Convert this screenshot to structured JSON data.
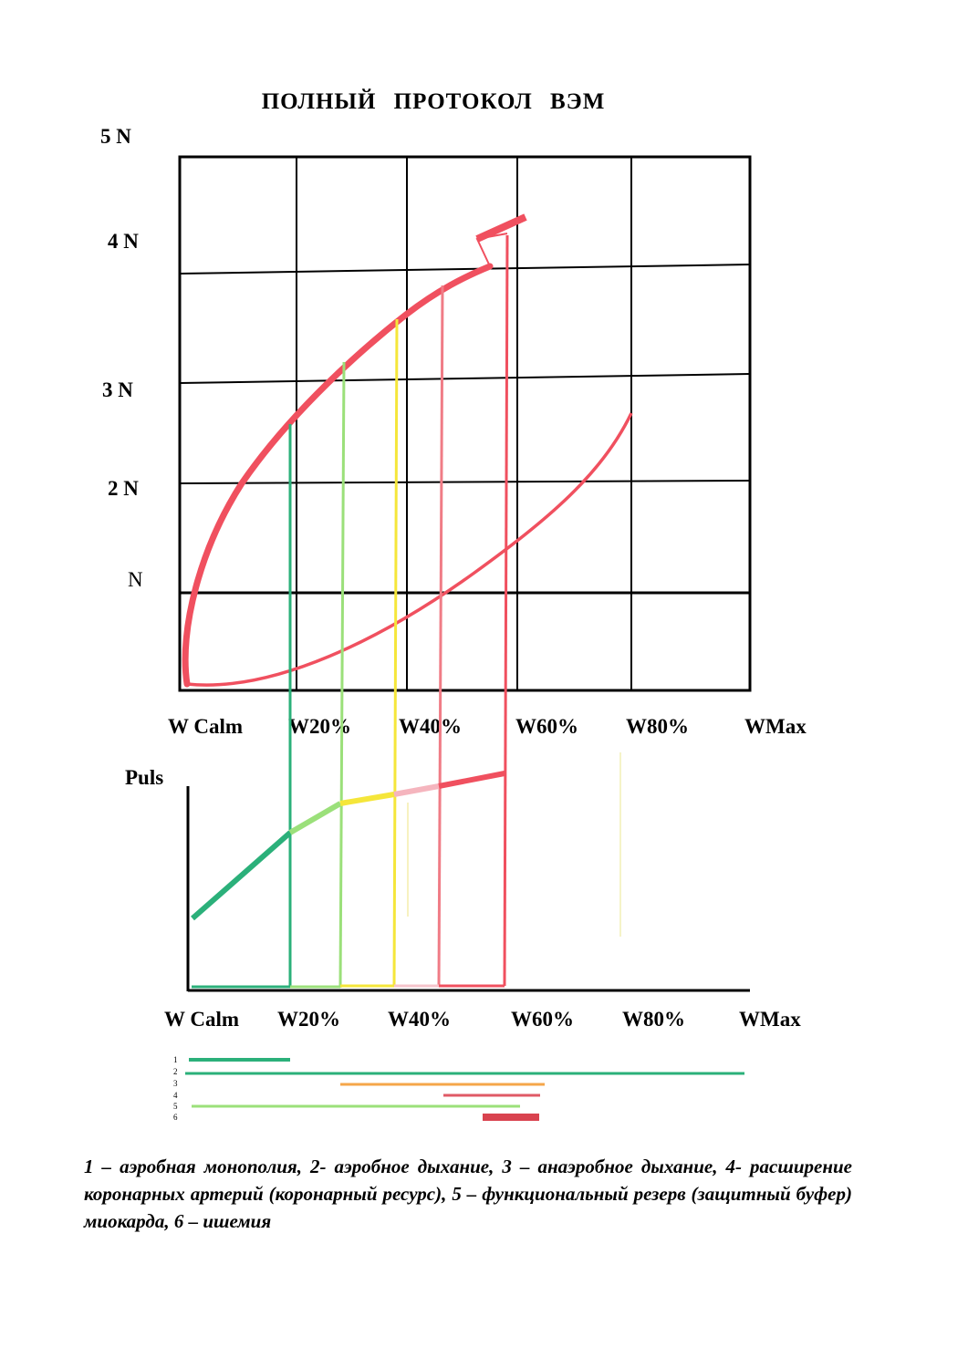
{
  "title": "ПОЛНЫЙ   ПРОТОКОЛ   ВЭМ",
  "y_labels": [
    "5 N",
    "4 N",
    "3  N",
    "2 N",
    "N"
  ],
  "x_labels_top": [
    "W Calm",
    "W20%",
    "W40%",
    "W60%",
    "W80%",
    "WMax"
  ],
  "x_labels_bottom": [
    "W Calm",
    "W20%",
    "W40%",
    "W60%",
    "W80%",
    "WMax"
  ],
  "puls_label": "Puls",
  "legend_numbers": [
    "1",
    "2",
    "3",
    "4",
    "5",
    "6"
  ],
  "caption": "1 – аэробная монополия, 2- аэробное дыхание, 3 – анаэробное дыхание, 4- расширение коронарных артерий (коронарный ресурс), 5 – функциональный резерв (защитный буфер) миокарда, 6 – ишемия",
  "colors": {
    "red": "#f0505f",
    "pink": "#f07c86",
    "dark_green": "#2bb07a",
    "light_green": "#9be07a",
    "yellow": "#f5e63a",
    "orange": "#f5a64a",
    "dark_red": "#d9434f"
  }
}
